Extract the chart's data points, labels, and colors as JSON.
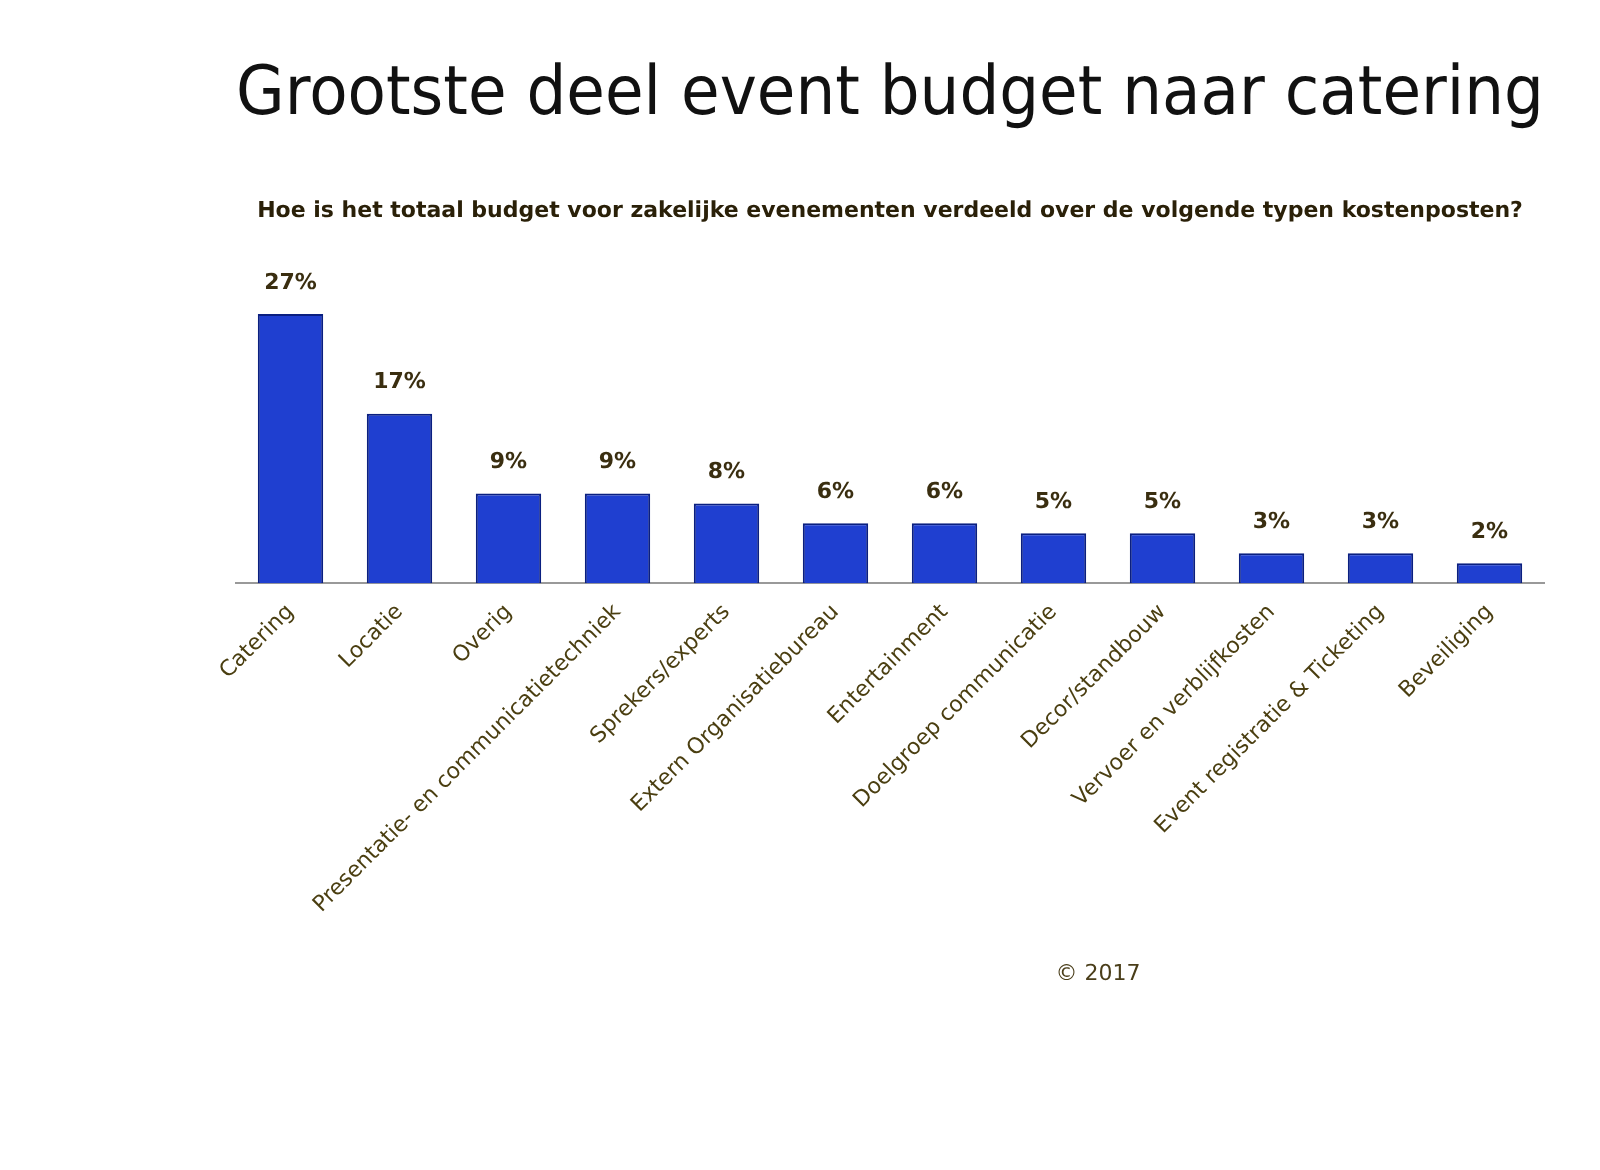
{
  "chart_data": {
    "type": "bar",
    "title": "Grootste deel event budget naar catering",
    "subtitle": "Hoe is het totaal budget voor zakelijke evenementen verdeeld over de volgende typen kostenposten?",
    "categories": [
      "Catering",
      "Locatie",
      "Overig",
      "Presentatie- en communicatietechniek",
      "Sprekers/experts",
      "Extern Organisatiebureau",
      "Entertainment",
      "Doelgroep communicatie",
      "Decor/standbouw",
      "Vervoer en verblijfkosten",
      "Event registratie & Ticketing",
      "Beveiliging"
    ],
    "values": [
      27,
      17,
      9,
      9,
      8,
      6,
      6,
      5,
      5,
      3,
      3,
      2
    ],
    "value_labels": [
      "27%",
      "17%",
      "9%",
      "9%",
      "8%",
      "6%",
      "6%",
      "5%",
      "5%",
      "3%",
      "3%",
      "2%"
    ],
    "color": "#1f3fd0",
    "grid": false,
    "legend": false,
    "tick_labels": "x",
    "annotations": [
      "© 2017"
    ]
  }
}
